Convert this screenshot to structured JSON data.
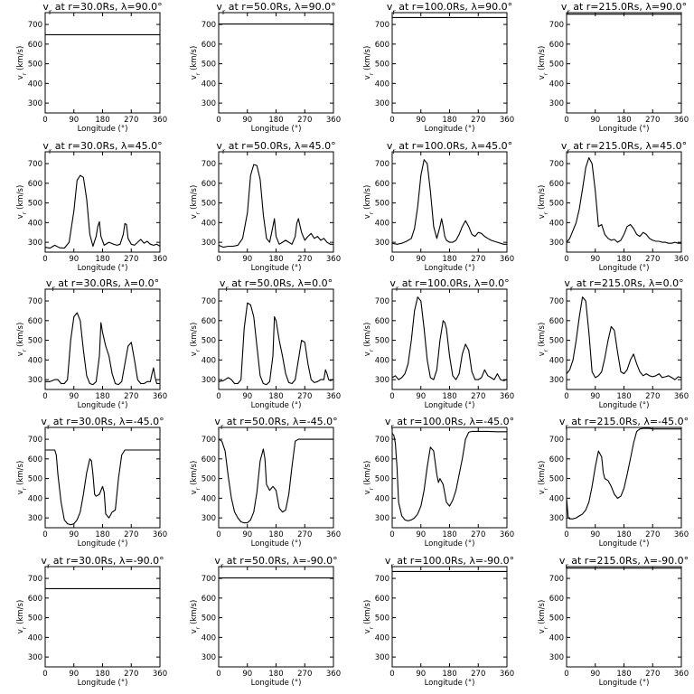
{
  "page": {
    "xlabel": "Longitude (°)",
    "ylabel": "v_r (km/s)",
    "xticks": [
      "0",
      "90",
      "180",
      "270",
      "360"
    ],
    "yticks": [
      "300",
      "400",
      "500",
      "600",
      "700"
    ]
  },
  "chart_data": [
    {
      "type": "line",
      "title": "vr at r=30.0Rs, λ=90.0°",
      "xlabel": "Longitude (°)",
      "ylabel": "v_r (km/s)",
      "xlim": [
        0,
        360
      ],
      "ylim": [
        250,
        760
      ],
      "x": [
        0,
        360
      ],
      "y": [
        648,
        648
      ]
    },
    {
      "type": "line",
      "title": "vr at r=50.0Rs, λ=90.0°",
      "xlabel": "Longitude (°)",
      "ylabel": "v_r (km/s)",
      "xlim": [
        0,
        360
      ],
      "ylim": [
        250,
        760
      ],
      "x": [
        0,
        360
      ],
      "y": [
        702,
        702
      ]
    },
    {
      "type": "line",
      "title": "vr at r=100.0Rs, λ=90.0°",
      "xlabel": "Longitude (°)",
      "ylabel": "v_r (km/s)",
      "xlim": [
        0,
        360
      ],
      "ylim": [
        250,
        760
      ],
      "x": [
        0,
        360
      ],
      "y": [
        735,
        735
      ]
    },
    {
      "type": "line",
      "title": "vr at r=215.0Rs, λ=90.0°",
      "xlabel": "Longitude (°)",
      "ylabel": "v_r (km/s)",
      "xlim": [
        0,
        360
      ],
      "ylim": [
        250,
        760
      ],
      "x": [
        0,
        360
      ],
      "y": [
        752,
        752
      ]
    },
    {
      "type": "line",
      "title": "vr at r=30.0Rs, λ=45.0°",
      "xlabel": "Longitude (°)",
      "ylabel": "v_r (km/s)",
      "xlim": [
        0,
        360
      ],
      "ylim": [
        250,
        760
      ],
      "x": [
        0,
        15,
        30,
        45,
        60,
        75,
        90,
        100,
        110,
        120,
        130,
        140,
        150,
        160,
        165,
        170,
        175,
        185,
        200,
        215,
        225,
        235,
        245,
        250,
        255,
        260,
        270,
        280,
        290,
        300,
        310,
        320,
        330,
        340,
        350,
        360
      ],
      "y": [
        275,
        270,
        285,
        272,
        270,
        300,
        460,
        615,
        640,
        630,
        520,
        340,
        280,
        330,
        380,
        405,
        330,
        285,
        300,
        290,
        285,
        290,
        340,
        395,
        390,
        320,
        290,
        285,
        300,
        315,
        295,
        305,
        290,
        285,
        290,
        280
      ]
    },
    {
      "type": "line",
      "title": "vr at r=50.0Rs, λ=45.0°",
      "xlabel": "Longitude (°)",
      "ylabel": "v_r (km/s)",
      "xlim": [
        0,
        360
      ],
      "ylim": [
        250,
        760
      ],
      "x": [
        0,
        15,
        30,
        45,
        60,
        75,
        90,
        100,
        110,
        120,
        130,
        140,
        150,
        160,
        170,
        175,
        180,
        190,
        200,
        210,
        220,
        230,
        240,
        245,
        250,
        260,
        270,
        280,
        290,
        300,
        310,
        320,
        330,
        340,
        350,
        360
      ],
      "y": [
        285,
        275,
        280,
        280,
        285,
        320,
        450,
        640,
        695,
        690,
        620,
        440,
        320,
        300,
        380,
        420,
        330,
        290,
        300,
        310,
        300,
        290,
        330,
        395,
        420,
        350,
        310,
        330,
        345,
        320,
        330,
        310,
        320,
        300,
        290,
        290
      ]
    },
    {
      "type": "line",
      "title": "vr at r=100.0Rs, λ=45.0°",
      "xlabel": "Longitude (°)",
      "ylabel": "v_r (km/s)",
      "xlim": [
        0,
        360
      ],
      "ylim": [
        250,
        760
      ],
      "x": [
        0,
        15,
        30,
        45,
        60,
        70,
        80,
        90,
        100,
        110,
        120,
        130,
        140,
        150,
        155,
        160,
        165,
        170,
        180,
        190,
        200,
        210,
        220,
        230,
        240,
        250,
        260,
        270,
        280,
        290,
        300,
        310,
        320,
        330,
        340,
        350,
        360
      ],
      "y": [
        295,
        290,
        295,
        305,
        320,
        370,
        480,
        640,
        720,
        700,
        560,
        380,
        320,
        380,
        420,
        380,
        330,
        310,
        300,
        300,
        310,
        340,
        380,
        410,
        380,
        340,
        330,
        350,
        345,
        330,
        320,
        310,
        305,
        300,
        295,
        290,
        290
      ]
    },
    {
      "type": "line",
      "title": "vr at r=215.0Rs, λ=45.0°",
      "xlabel": "Longitude (°)",
      "ylabel": "v_r (km/s)",
      "xlim": [
        0,
        360
      ],
      "ylim": [
        250,
        760
      ],
      "x": [
        0,
        10,
        20,
        30,
        40,
        50,
        60,
        70,
        80,
        90,
        100,
        110,
        120,
        130,
        140,
        150,
        160,
        170,
        180,
        190,
        200,
        210,
        220,
        230,
        240,
        250,
        260,
        270,
        280,
        290,
        300,
        310,
        320,
        330,
        340,
        350,
        360
      ],
      "y": [
        300,
        320,
        360,
        400,
        470,
        570,
        680,
        730,
        700,
        560,
        380,
        390,
        340,
        320,
        310,
        315,
        300,
        310,
        340,
        380,
        390,
        370,
        340,
        330,
        350,
        340,
        320,
        310,
        305,
        305,
        300,
        300,
        295,
        295,
        300,
        295,
        295
      ]
    },
    {
      "type": "line",
      "title": "vr at r=30.0Rs, λ=0.0°",
      "xlabel": "Longitude (°)",
      "ylabel": "v_r (km/s)",
      "xlim": [
        0,
        360
      ],
      "ylim": [
        250,
        760
      ],
      "x": [
        0,
        15,
        30,
        40,
        50,
        60,
        70,
        80,
        90,
        100,
        110,
        120,
        130,
        140,
        150,
        160,
        170,
        175,
        180,
        190,
        200,
        210,
        220,
        230,
        240,
        250,
        260,
        270,
        280,
        290,
        300,
        310,
        320,
        330,
        335,
        340,
        345,
        350,
        360
      ],
      "y": [
        290,
        290,
        300,
        300,
        280,
        280,
        300,
        500,
        620,
        640,
        600,
        450,
        320,
        280,
        275,
        290,
        420,
        590,
        540,
        470,
        420,
        330,
        280,
        275,
        290,
        380,
        470,
        490,
        400,
        300,
        280,
        280,
        290,
        290,
        330,
        360,
        310,
        280,
        280
      ]
    },
    {
      "type": "line",
      "title": "vr at r=50.0Rs, λ=0.0°",
      "xlabel": "Longitude (°)",
      "ylabel": "v_r (km/s)",
      "xlim": [
        0,
        360
      ],
      "ylim": [
        250,
        760
      ],
      "x": [
        0,
        15,
        30,
        40,
        50,
        60,
        70,
        80,
        90,
        100,
        110,
        120,
        130,
        140,
        150,
        160,
        170,
        175,
        180,
        190,
        200,
        210,
        220,
        230,
        240,
        250,
        260,
        270,
        280,
        290,
        300,
        310,
        320,
        330,
        335,
        340,
        345,
        350,
        360
      ],
      "y": [
        290,
        295,
        310,
        300,
        280,
        280,
        300,
        560,
        690,
        680,
        620,
        470,
        320,
        280,
        275,
        290,
        420,
        620,
        600,
        500,
        420,
        330,
        285,
        280,
        300,
        400,
        500,
        490,
        380,
        300,
        285,
        290,
        300,
        300,
        350,
        330,
        300,
        295,
        300
      ]
    },
    {
      "type": "line",
      "title": "vr at r=100.0Rs, λ=0.0°",
      "xlabel": "Longitude (°)",
      "ylabel": "v_r (km/s)",
      "xlim": [
        0,
        360
      ],
      "ylim": [
        250,
        760
      ],
      "x": [
        0,
        10,
        20,
        30,
        40,
        50,
        60,
        70,
        80,
        90,
        100,
        110,
        120,
        130,
        140,
        150,
        160,
        165,
        170,
        180,
        190,
        200,
        210,
        220,
        230,
        240,
        250,
        260,
        270,
        280,
        290,
        300,
        310,
        320,
        330,
        340,
        350,
        360
      ],
      "y": [
        310,
        320,
        300,
        310,
        330,
        380,
        500,
        650,
        720,
        700,
        560,
        400,
        310,
        300,
        350,
        500,
        600,
        590,
        560,
        420,
        320,
        300,
        330,
        430,
        480,
        450,
        340,
        300,
        300,
        310,
        350,
        320,
        310,
        300,
        330,
        300,
        295,
        300
      ]
    },
    {
      "type": "line",
      "title": "vr at r=215.0Rs, λ=0.0°",
      "xlabel": "Longitude (°)",
      "ylabel": "v_r (km/s)",
      "xlim": [
        0,
        360
      ],
      "ylim": [
        250,
        760
      ],
      "x": [
        0,
        10,
        20,
        30,
        40,
        50,
        60,
        70,
        80,
        90,
        100,
        110,
        120,
        130,
        140,
        150,
        160,
        170,
        180,
        190,
        200,
        210,
        220,
        230,
        240,
        250,
        260,
        270,
        280,
        290,
        300,
        310,
        320,
        330,
        340,
        350,
        360
      ],
      "y": [
        330,
        350,
        400,
        500,
        620,
        720,
        700,
        540,
        340,
        310,
        320,
        340,
        410,
        500,
        570,
        550,
        440,
        340,
        330,
        350,
        400,
        430,
        380,
        340,
        320,
        330,
        320,
        315,
        320,
        330,
        310,
        315,
        320,
        310,
        300,
        315,
        310
      ]
    },
    {
      "type": "line",
      "title": "vr at r=30.0Rs, λ=-45.0°",
      "xlabel": "Longitude (°)",
      "ylabel": "v_r (km/s)",
      "xlim": [
        0,
        360
      ],
      "ylim": [
        250,
        760
      ],
      "x": [
        0,
        30,
        35,
        40,
        50,
        60,
        70,
        80,
        90,
        100,
        110,
        120,
        130,
        140,
        145,
        150,
        155,
        160,
        170,
        180,
        185,
        190,
        200,
        210,
        220,
        230,
        240,
        250,
        260,
        270,
        300,
        330,
        360
      ],
      "y": [
        645,
        645,
        620,
        520,
        380,
        290,
        270,
        265,
        270,
        290,
        330,
        420,
        530,
        600,
        590,
        520,
        420,
        410,
        420,
        460,
        430,
        320,
        300,
        330,
        340,
        500,
        620,
        645,
        645,
        645,
        645,
        645,
        645
      ]
    },
    {
      "type": "line",
      "title": "vr at r=50.0Rs, λ=-45.0°",
      "xlabel": "Longitude (°)",
      "ylabel": "v_r (km/s)",
      "xlim": [
        0,
        360
      ],
      "ylim": [
        250,
        760
      ],
      "x": [
        0,
        10,
        20,
        30,
        40,
        50,
        60,
        70,
        80,
        90,
        100,
        110,
        120,
        130,
        140,
        145,
        150,
        160,
        170,
        180,
        190,
        200,
        210,
        220,
        230,
        240,
        250,
        260,
        270,
        300,
        330,
        360
      ],
      "y": [
        700,
        690,
        640,
        510,
        400,
        330,
        300,
        280,
        275,
        275,
        290,
        330,
        430,
        590,
        650,
        600,
        470,
        440,
        460,
        440,
        350,
        330,
        340,
        420,
        560,
        690,
        700,
        700,
        700,
        700,
        700,
        700
      ]
    },
    {
      "type": "line",
      "title": "vr at r=100.0Rs, λ=-45.0°",
      "xlabel": "Longitude (°)",
      "ylabel": "v_r (km/s)",
      "xlim": [
        0,
        360
      ],
      "ylim": [
        250,
        760
      ],
      "x": [
        0,
        5,
        10,
        15,
        20,
        30,
        40,
        50,
        60,
        70,
        80,
        90,
        100,
        110,
        120,
        130,
        140,
        145,
        150,
        160,
        170,
        180,
        190,
        200,
        210,
        220,
        230,
        240,
        250,
        260,
        280,
        300,
        330,
        360
      ],
      "y": [
        730,
        720,
        680,
        560,
        380,
        310,
        290,
        285,
        290,
        300,
        320,
        360,
        440,
        560,
        660,
        640,
        520,
        480,
        500,
        470,
        380,
        360,
        390,
        440,
        520,
        600,
        700,
        735,
        740,
        740,
        740,
        740,
        738,
        738
      ]
    },
    {
      "type": "line",
      "title": "vr at r=215.0Rs, λ=-45.0°",
      "xlabel": "Longitude (°)",
      "ylabel": "v_r (km/s)",
      "xlim": [
        0,
        360
      ],
      "ylim": [
        250,
        760
      ],
      "x": [
        0,
        5,
        10,
        20,
        30,
        40,
        50,
        60,
        70,
        80,
        90,
        100,
        110,
        115,
        120,
        130,
        140,
        150,
        160,
        170,
        180,
        190,
        200,
        210,
        220,
        230,
        240,
        250,
        260,
        270,
        300,
        330,
        360
      ],
      "y": [
        400,
        300,
        295,
        295,
        300,
        310,
        320,
        340,
        380,
        460,
        560,
        640,
        610,
        530,
        500,
        490,
        460,
        420,
        400,
        410,
        450,
        520,
        600,
        680,
        740,
        752,
        755,
        755,
        755,
        752,
        752,
        752,
        752
      ]
    },
    {
      "type": "line",
      "title": "vr at r=30.0Rs, λ=-90.0°",
      "xlabel": "Longitude (°)",
      "ylabel": "v_r (km/s)",
      "xlim": [
        0,
        360
      ],
      "ylim": [
        250,
        760
      ],
      "x": [
        0,
        360
      ],
      "y": [
        648,
        648
      ]
    },
    {
      "type": "line",
      "title": "vr at r=50.0Rs, λ=-90.0°",
      "xlabel": "Longitude (°)",
      "ylabel": "v_r (km/s)",
      "xlim": [
        0,
        360
      ],
      "ylim": [
        250,
        760
      ],
      "x": [
        0,
        360
      ],
      "y": [
        702,
        702
      ]
    },
    {
      "type": "line",
      "title": "vr at r=100.0Rs, λ=-90.0°",
      "xlabel": "Longitude (°)",
      "ylabel": "v_r (km/s)",
      "xlim": [
        0,
        360
      ],
      "ylim": [
        250,
        760
      ],
      "x": [
        0,
        360
      ],
      "y": [
        735,
        735
      ]
    },
    {
      "type": "line",
      "title": "vr at r=215.0Rs, λ=-90.0°",
      "xlabel": "Longitude (°)",
      "ylabel": "v_r (km/s)",
      "xlim": [
        0,
        360
      ],
      "ylim": [
        250,
        760
      ],
      "x": [
        0,
        360
      ],
      "y": [
        752,
        752
      ]
    }
  ]
}
